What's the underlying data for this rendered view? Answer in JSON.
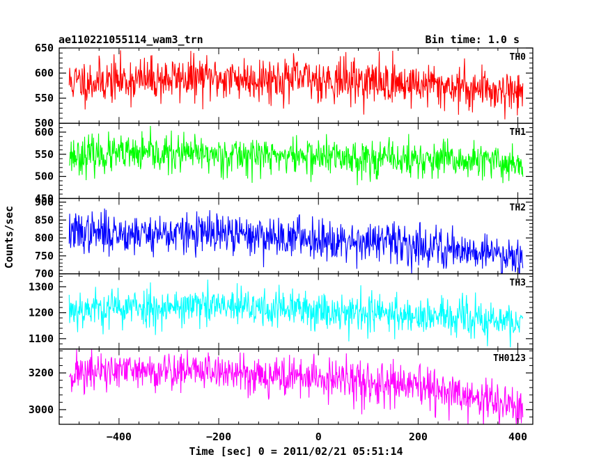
{
  "chart_data": {
    "type": "line",
    "title_left": "ae110221055114_wam3_trn",
    "title_right": "Bin time: 1.0 s",
    "xlabel": "Time [sec] 0 = 2011/02/21 05:51:14",
    "ylabel": "Counts/sec",
    "xlim": [
      -520,
      430
    ],
    "x_ticks": [
      -400,
      -200,
      0,
      200,
      400
    ],
    "x_range": [
      -500,
      410
    ],
    "panels": [
      {
        "name": "TH0",
        "color": "#ff0000",
        "ylim": [
          500,
          650
        ],
        "y_ticks": [
          500,
          550,
          600,
          650
        ],
        "trend": [
          [
            -500,
            582
          ],
          [
            -250,
            590
          ],
          [
            0,
            588
          ],
          [
            200,
            578
          ],
          [
            410,
            563
          ]
        ],
        "noise": 22,
        "seed": 11
      },
      {
        "name": "TH1",
        "color": "#00ff00",
        "ylim": [
          450,
          620
        ],
        "y_ticks": [
          450,
          500,
          550,
          600
        ],
        "trend": [
          [
            -500,
            548
          ],
          [
            -250,
            550
          ],
          [
            0,
            545
          ],
          [
            200,
            537
          ],
          [
            410,
            530
          ]
        ],
        "noise": 21,
        "seed": 23
      },
      {
        "name": "TH2",
        "color": "#0000ff",
        "ylim": [
          700,
          910
        ],
        "y_ticks": [
          700,
          750,
          800,
          850,
          900
        ],
        "trend": [
          [
            -500,
            815
          ],
          [
            -250,
            812
          ],
          [
            0,
            800
          ],
          [
            200,
            780
          ],
          [
            410,
            750
          ]
        ],
        "noise": 28,
        "seed": 37
      },
      {
        "name": "TH3",
        "color": "#00ffff",
        "ylim": [
          1060,
          1350
        ],
        "y_ticks": [
          1100,
          1200,
          1300
        ],
        "trend": [
          [
            -500,
            1215
          ],
          [
            -250,
            1225
          ],
          [
            0,
            1210
          ],
          [
            200,
            1190
          ],
          [
            410,
            1160
          ]
        ],
        "noise": 38,
        "seed": 53
      },
      {
        "name": "TH0123",
        "color": "#ff00ff",
        "ylim": [
          2920,
          3330
        ],
        "y_ticks": [
          3000,
          3200
        ],
        "trend": [
          [
            -500,
            3200
          ],
          [
            -250,
            3215
          ],
          [
            0,
            3170
          ],
          [
            200,
            3120
          ],
          [
            410,
            3010
          ]
        ],
        "noise": 55,
        "seed": 71
      }
    ]
  }
}
